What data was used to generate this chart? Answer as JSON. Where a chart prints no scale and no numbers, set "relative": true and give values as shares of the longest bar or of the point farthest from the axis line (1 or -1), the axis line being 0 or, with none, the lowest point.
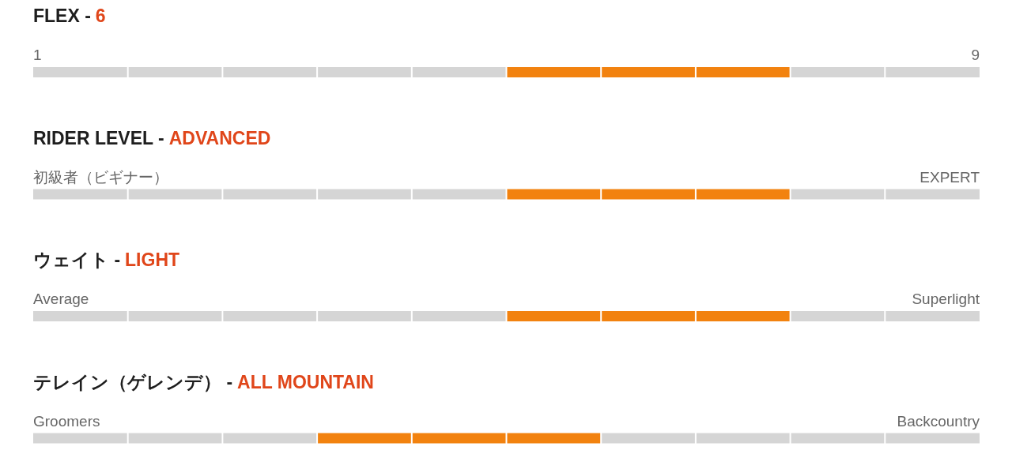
{
  "chart_data": [
    {
      "type": "bar",
      "orientation": "horizontal",
      "stacked": true,
      "relative": true,
      "title": "FLEX -",
      "subtitle": "6",
      "categories": [
        null
      ],
      "annotations": [
        "1",
        "9"
      ],
      "series": [
        {
          "color": "#d5d5d5",
          "values": [
            0.5
          ]
        },
        {
          "color": "#f2820f",
          "values": [
            0.3
          ]
        },
        {
          "color": "#d5d5d5",
          "values": [
            0.2
          ]
        }
      ]
    },
    {
      "type": "bar",
      "orientation": "horizontal",
      "stacked": true,
      "relative": true,
      "title": "RIDER LEVEL -",
      "subtitle": "ADVANCED",
      "categories": [
        null
      ],
      "annotations": [
        "初級者（ビギナー）",
        "EXPERT"
      ],
      "series": [
        {
          "color": "#d5d5d5",
          "values": [
            0.5
          ]
        },
        {
          "color": "#f2820f",
          "values": [
            0.3
          ]
        },
        {
          "color": "#d5d5d5",
          "values": [
            0.2
          ]
        }
      ]
    },
    {
      "type": "bar",
      "orientation": "horizontal",
      "stacked": true,
      "relative": true,
      "title": "ウェイト -",
      "subtitle": "LIGHT",
      "categories": [
        null
      ],
      "annotations": [
        "Average",
        "Superlight"
      ],
      "series": [
        {
          "color": "#d5d5d5",
          "values": [
            0.5
          ]
        },
        {
          "color": "#f2820f",
          "values": [
            0.3
          ]
        },
        {
          "color": "#d5d5d5",
          "values": [
            0.2
          ]
        }
      ]
    },
    {
      "type": "bar",
      "orientation": "horizontal",
      "stacked": true,
      "relative": true,
      "title": "テレイン（ゲレンデ） -",
      "subtitle": "ALL MOUNTAIN",
      "categories": [
        null
      ],
      "annotations": [
        "Groomers",
        "Backcountry"
      ],
      "series": [
        {
          "color": "#d5d5d5",
          "values": [
            0.3
          ]
        },
        {
          "color": "#f2820f",
          "values": [
            0.3
          ]
        },
        {
          "color": "#d5d5d5",
          "values": [
            0.4
          ]
        }
      ]
    }
  ]
}
